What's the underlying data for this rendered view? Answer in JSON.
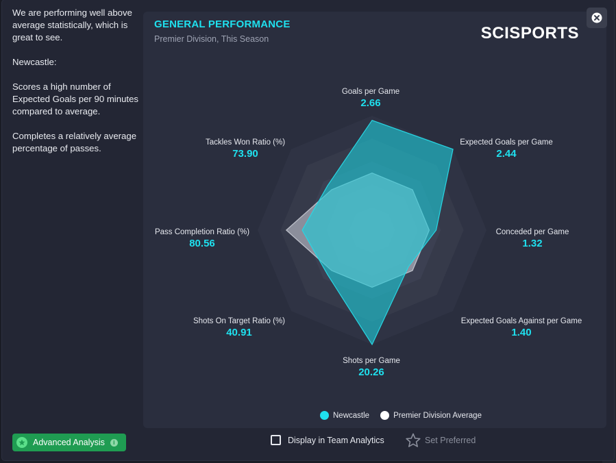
{
  "side": {
    "paragraphs": [
      "We are performing well above average statistically, which is great to see.",
      "Newcastle:",
      "Scores a high number of Expected Goals per 90 minutes compared to average.",
      "Completes a relatively average percentage of passes."
    ]
  },
  "card": {
    "title": "GENERAL PERFORMANCE",
    "subtitle": "Premier Division, This Season",
    "brand": "SCISPORTS"
  },
  "chart_data": {
    "type": "radar",
    "title": "GENERAL PERFORMANCE",
    "axes": [
      {
        "name": "Goals per Game",
        "value": "2.66"
      },
      {
        "name": "Expected Goals per Game",
        "value": "2.44"
      },
      {
        "name": "Conceded per Game",
        "value": "1.32"
      },
      {
        "name": "Expected Goals Against per Game",
        "value": "1.40"
      },
      {
        "name": "Shots per Game",
        "value": "20.26"
      },
      {
        "name": "Shots On Target Ratio (%)",
        "value": "40.91"
      },
      {
        "name": "Pass Completion Ratio (%)",
        "value": "80.56"
      },
      {
        "name": "Tackles Won Ratio (%)",
        "value": "73.90"
      }
    ],
    "series": [
      {
        "name": "Newcastle",
        "color": "#1fc9d6",
        "relative": [
          0.96,
          1.0,
          0.56,
          0.45,
          1.0,
          0.55,
          0.61,
          0.55
        ]
      },
      {
        "name": "Premier Division Average",
        "color": "#c9ccd6",
        "relative": [
          0.5,
          0.5,
          0.5,
          0.5,
          0.5,
          0.5,
          0.75,
          0.5
        ]
      }
    ],
    "legend_position": "bottom",
    "grid": true
  },
  "legend": [
    {
      "label": "Newcastle",
      "color": "#1fe0ee"
    },
    {
      "label": "Premier Division Average",
      "color": "#ffffff"
    }
  ],
  "footer": {
    "advanced_label": "Advanced Analysis",
    "info_glyph": "i",
    "team_analytics_label": "Display in Team Analytics",
    "set_preferred_label": "Set Preferred"
  },
  "icons": {
    "close": "close-icon",
    "advanced": "star-circle-icon",
    "info": "info-icon",
    "checkbox": "checkbox-icon",
    "star": "star-outline-icon"
  }
}
